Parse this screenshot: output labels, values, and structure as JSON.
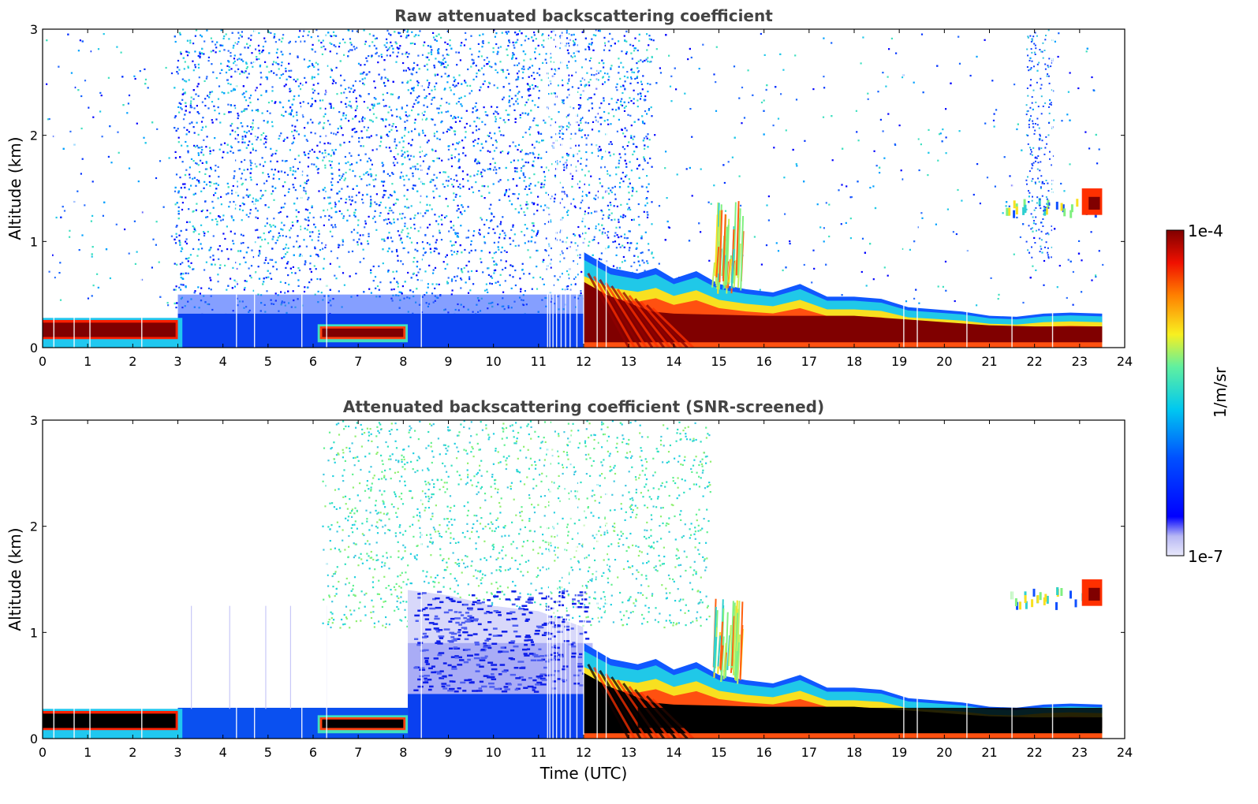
{
  "colors": {
    "low": "#e8e8fb",
    "blue": "#1030ff",
    "cyan": "#25d0e0",
    "green": "#80f080",
    "yellow": "#f8e020",
    "orange": "#ff6010",
    "high": "#800000",
    "saturated": "#000000"
  },
  "colorbar": {
    "max_label": "1e-4",
    "min_label": "1e-7",
    "unit_label": "1/m/sr",
    "scale": "log"
  },
  "chart_data": [
    {
      "type": "heatmap",
      "title": "Raw attenuated backscattering coefficient",
      "xlabel": "",
      "ylabel": "Altitude (km)",
      "xlim": [
        0,
        24
      ],
      "ylim": [
        0,
        3
      ],
      "xticks": [
        "0",
        "1",
        "2",
        "3",
        "4",
        "5",
        "6",
        "7",
        "8",
        "9",
        "10",
        "11",
        "12",
        "13",
        "14",
        "15",
        "16",
        "17",
        "18",
        "19",
        "20",
        "21",
        "22",
        "23",
        "24"
      ],
      "yticks": [
        "0",
        "1",
        "2",
        "3"
      ],
      "features": [
        {
          "name": "surface layer",
          "t_start": 0,
          "t_end": 3,
          "z_top": 0.28,
          "intensity": "high"
        },
        {
          "name": "surface layer",
          "t_start": 6.1,
          "t_end": 8.1,
          "z_top": 0.22,
          "intensity": "high"
        },
        {
          "name": "noise region",
          "t_start": 3,
          "t_end": 13.5,
          "z_top": 3,
          "intensity": "blue"
        },
        {
          "name": "boundary layer",
          "t_start": 12,
          "t_end": 23.5,
          "z_top": 0.85,
          "intensity": "high"
        },
        {
          "name": "rising plume",
          "t_start": 14.9,
          "t_end": 15.4,
          "z_top": 1.4,
          "intensity": "yellow"
        },
        {
          "name": "elevated cloud",
          "t_start": 21.2,
          "t_end": 23.5,
          "z_top": 1.5,
          "intensity": "high"
        }
      ]
    },
    {
      "type": "heatmap",
      "title": "Attenuated backscattering coefficient (SNR-screened)",
      "xlabel": "Time (UTC)",
      "ylabel": "Altitude (km)",
      "xlim": [
        0,
        24
      ],
      "ylim": [
        0,
        3
      ],
      "xticks": [
        "0",
        "1",
        "2",
        "3",
        "4",
        "5",
        "6",
        "7",
        "8",
        "9",
        "10",
        "11",
        "12",
        "13",
        "14",
        "15",
        "16",
        "17",
        "18",
        "19",
        "20",
        "21",
        "22",
        "23",
        "24"
      ],
      "yticks": [
        "0",
        "1",
        "2",
        "3"
      ],
      "features": [
        {
          "name": "surface layer",
          "t_start": 0,
          "t_end": 3,
          "z_top": 0.28,
          "intensity": "saturated"
        },
        {
          "name": "surface layer",
          "t_start": 6.1,
          "t_end": 8.1,
          "z_top": 0.22,
          "intensity": "saturated"
        },
        {
          "name": "residual layer",
          "t_start": 8.1,
          "t_end": 12,
          "z_top": 1.4,
          "intensity": "blue"
        },
        {
          "name": "boundary layer",
          "t_start": 12,
          "t_end": 23.5,
          "z_top": 0.85,
          "intensity": "saturated"
        },
        {
          "name": "rising plume",
          "t_start": 14.9,
          "t_end": 15.4,
          "z_top": 1.35,
          "intensity": "yellow"
        },
        {
          "name": "elevated cloud",
          "t_start": 21.4,
          "t_end": 23.5,
          "z_top": 1.5,
          "intensity": "high"
        }
      ]
    }
  ]
}
